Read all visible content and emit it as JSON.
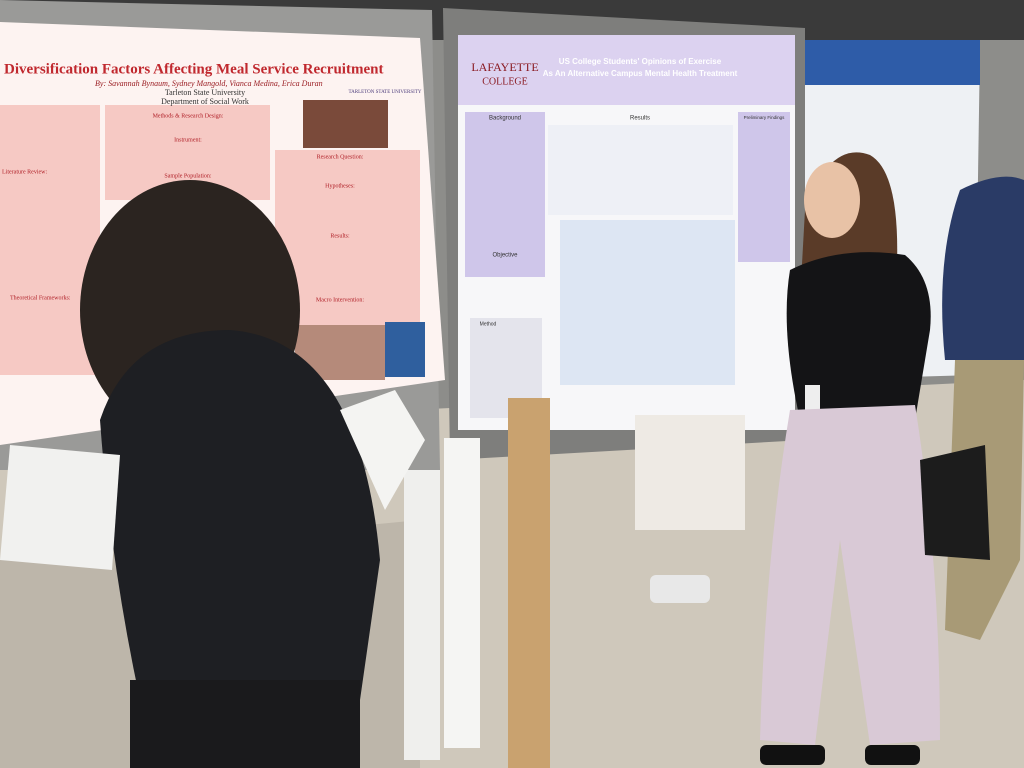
{
  "poster_left": {
    "title": "Diversification Factors Affecting Meal Service Recruitment",
    "authors": "By: Savannah Bynaum, Sydney Mangold, Vianca Medina, Erica Duran",
    "university": "Tarleton State University",
    "department": "Department of Social Work",
    "logo": "TARLETON STATE UNIVERSITY",
    "headings": [
      "Methods & Research Design:",
      "Instrument:",
      "Sample Population:",
      "Research Question:",
      "Hypotheses:",
      "Results:",
      "Macro Intervention:",
      "Literature Review:",
      "Theoretical Frameworks:"
    ]
  },
  "poster_right": {
    "college": [
      "LAFAYETTE",
      "COLLEGE"
    ],
    "title": [
      "US College Students' Opinions of Exercise",
      "As An Alternative Campus Mental Health Treatment"
    ],
    "headings": [
      "Background",
      "Results",
      "Objective",
      "Method",
      "Preliminary Findings"
    ]
  }
}
